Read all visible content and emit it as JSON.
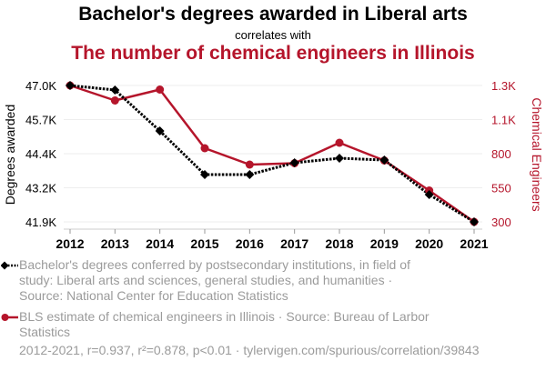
{
  "header": {
    "title": "Bachelor's degrees awarded in Liberal arts",
    "connector": "correlates with",
    "subtitle": "The number of chemical engineers in Illinois"
  },
  "colors": {
    "series1": "#000000",
    "series2": "#b5152b",
    "legend_text": "#9b9b9b",
    "grid": "#eeeeee"
  },
  "chart_data": {
    "type": "line",
    "title": "Bachelor's degrees awarded in Liberal arts correlates with The number of chemical engineers in Illinois",
    "x": [
      2012,
      2013,
      2014,
      2015,
      2016,
      2017,
      2018,
      2019,
      2020,
      2021
    ],
    "x_tick_labels": [
      "2012",
      "2013",
      "2014",
      "2015",
      "2016",
      "2017",
      "2018",
      "2019",
      "2020",
      "2021"
    ],
    "ylabel_left": "Degrees awarded",
    "ylabel_right": "Chemical Engineers",
    "ylim_left": [
      41900,
      47000
    ],
    "ylim_right": [
      300,
      1300
    ],
    "yticks_left": [
      47000,
      45725,
      44450,
      43175,
      41900
    ],
    "ytick_labels_left": [
      "47.0K",
      "45.7K",
      "44.4K",
      "43.2K",
      "41.9K"
    ],
    "yticks_right": [
      1300,
      1050,
      800,
      550,
      300
    ],
    "ytick_labels_right": [
      "1.3K",
      "1.1K",
      "800",
      "550",
      "300"
    ],
    "grid": true,
    "legend_placement": "bottom",
    "series": [
      {
        "name": "Bachelor's degrees conferred by postsecondary institutions, in field of study: Liberal arts and sciences, general studies, and humanities · Source: National Center for Education Statistics",
        "axis": "left",
        "style": "dotted-diamond",
        "values": [
          47000,
          46830,
          45300,
          43670,
          43670,
          44110,
          44280,
          44210,
          42920,
          41900
        ]
      },
      {
        "name": "BLS estimate of chemical engineers in Illinois · Source: Bureau of Larbor Statistics",
        "axis": "right",
        "style": "solid-circle",
        "values": [
          1300,
          1190,
          1270,
          840,
          720,
          730,
          880,
          750,
          530,
          300
        ]
      }
    ],
    "annotation": "2012-2021, r=0.937, r²=0.878, p<0.01 · tylervigen.com/spurious/correlation/39843"
  },
  "legend": {
    "item1": "Bachelor's degrees conferred by postsecondary institutions, in field of study: Liberal arts and sciences, general studies, and humanities · Source: National Center for Education Statistics",
    "item2": "BLS estimate of chemical engineers in Illinois · Source: Bureau of Larbor Statistics"
  },
  "footer": "2012-2021, r=0.937, r²=0.878, p<0.01 · tylervigen.com/spurious/correlation/39843"
}
